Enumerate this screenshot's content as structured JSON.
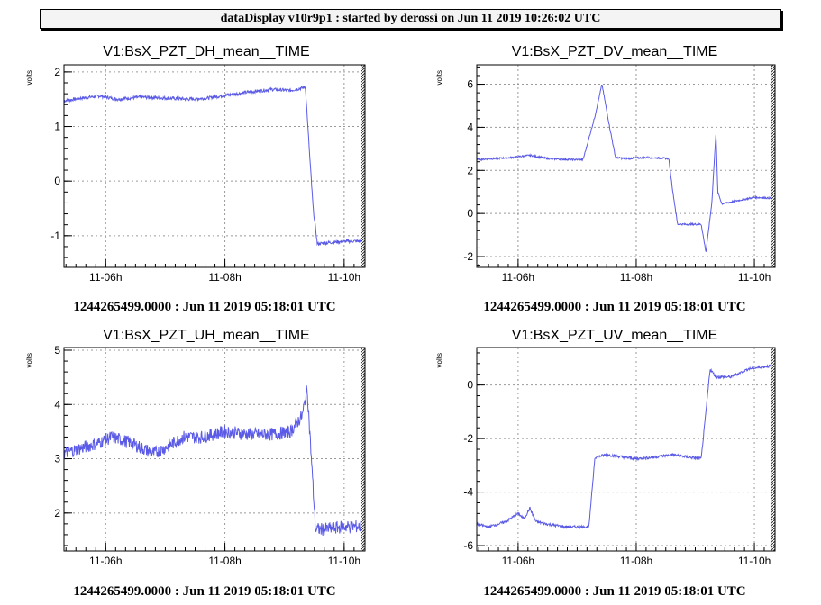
{
  "header": {
    "title": "dataDisplay v10r9p1 : started by derossi on Jun 11 2019 10:26:02 UTC"
  },
  "colors": {
    "series": "#5a5ae6",
    "grid": "#999999",
    "frame": "#000000"
  },
  "chart_data": [
    {
      "type": "line",
      "title": "V1:BsX_PZT_DH_mean__TIME",
      "ylabel": "volts",
      "footer": "1244265499.0000 : Jun 11 2019 05:18:01 UTC",
      "x_tick_labels": [
        "11-06h",
        "11-08h",
        "11-10h"
      ],
      "x_tick_hours": [
        6,
        8,
        10
      ],
      "xlim": [
        5.3,
        10.35
      ],
      "ylim": [
        -1.58,
        2.13
      ],
      "y_ticks": [
        -1,
        0,
        1,
        2
      ],
      "y_tick_labels": [
        "-1",
        "0",
        "1",
        "2"
      ],
      "noise": 0.03,
      "series": [
        {
          "x": [
            5.3,
            5.6,
            5.9,
            6.2,
            6.6,
            7.0,
            7.4,
            7.7,
            8.0,
            8.4,
            8.8,
            9.1,
            9.35,
            9.42,
            9.48,
            9.55,
            9.8,
            10.1,
            10.35
          ],
          "y": [
            1.47,
            1.52,
            1.56,
            1.5,
            1.54,
            1.52,
            1.5,
            1.52,
            1.57,
            1.63,
            1.68,
            1.66,
            1.72,
            0.5,
            -0.5,
            -1.15,
            -1.12,
            -1.1,
            -1.1
          ]
        }
      ]
    },
    {
      "type": "line",
      "title": "V1:BsX_PZT_DV_mean__TIME",
      "ylabel": "volts",
      "footer": "1244265499.0000 : Jun 11 2019 05:18:01 UTC",
      "x_tick_labels": [
        "11-06h",
        "11-08h",
        "11-10h"
      ],
      "x_tick_hours": [
        6,
        8,
        10
      ],
      "xlim": [
        5.3,
        10.35
      ],
      "ylim": [
        -2.5,
        6.9
      ],
      "y_ticks": [
        -2,
        0,
        2,
        4,
        6
      ],
      "y_tick_labels": [
        "-2",
        "0",
        "2",
        "4",
        "6"
      ],
      "noise": 0.04,
      "series": [
        {
          "x": [
            5.3,
            5.6,
            5.9,
            6.2,
            6.5,
            6.9,
            7.1,
            7.3,
            7.42,
            7.55,
            7.65,
            7.8,
            8.2,
            8.55,
            8.62,
            8.7,
            9.0,
            9.1,
            9.18,
            9.28,
            9.35,
            9.38,
            9.45,
            10.0,
            10.35
          ],
          "y": [
            2.5,
            2.55,
            2.6,
            2.7,
            2.55,
            2.5,
            2.5,
            4.5,
            6.0,
            4.0,
            2.6,
            2.55,
            2.6,
            2.55,
            1.0,
            -0.5,
            -0.5,
            -0.5,
            -1.8,
            0.5,
            3.8,
            1.0,
            0.45,
            0.75,
            0.7
          ]
        }
      ]
    },
    {
      "type": "line",
      "title": "V1:BsX_PZT_UH_mean__TIME",
      "ylabel": "volts",
      "footer": "1244265499.0000 : Jun 11 2019 05:18:01 UTC",
      "x_tick_labels": [
        "11-06h",
        "11-08h",
        "11-10h"
      ],
      "x_tick_hours": [
        6,
        8,
        10
      ],
      "xlim": [
        5.3,
        10.35
      ],
      "ylim": [
        1.3,
        5.05
      ],
      "y_ticks": [
        2,
        3,
        4,
        5
      ],
      "y_tick_labels": [
        "2",
        "3",
        "4",
        "5"
      ],
      "noise": 0.12,
      "series": [
        {
          "x": [
            5.3,
            5.6,
            5.9,
            6.1,
            6.4,
            6.8,
            7.0,
            7.3,
            7.6,
            8.0,
            8.4,
            8.8,
            9.1,
            9.3,
            9.38,
            9.45,
            9.52,
            9.7,
            10.0,
            10.35
          ],
          "y": [
            3.1,
            3.2,
            3.3,
            3.4,
            3.3,
            3.1,
            3.2,
            3.4,
            3.4,
            3.5,
            3.45,
            3.45,
            3.5,
            3.8,
            4.3,
            3.0,
            1.7,
            1.7,
            1.75,
            1.75
          ]
        }
      ]
    },
    {
      "type": "line",
      "title": "V1:BsX_PZT_UV_mean__TIME",
      "ylabel": "volts",
      "footer": "1244265499.0000 : Jun 11 2019 05:18:01 UTC",
      "x_tick_labels": [
        "11-06h",
        "11-08h",
        "11-10h"
      ],
      "x_tick_hours": [
        6,
        8,
        10
      ],
      "xlim": [
        5.3,
        10.35
      ],
      "ylim": [
        -6.2,
        1.4
      ],
      "y_ticks": [
        -6,
        -4,
        -2,
        0
      ],
      "y_tick_labels": [
        "-6",
        "-4",
        "-2",
        "0"
      ],
      "noise": 0.05,
      "series": [
        {
          "x": [
            5.3,
            5.5,
            5.8,
            6.0,
            6.1,
            6.2,
            6.3,
            6.5,
            6.8,
            7.2,
            7.3,
            7.5,
            7.8,
            8.0,
            8.3,
            8.6,
            8.9,
            9.1,
            9.18,
            9.25,
            9.35,
            9.6,
            9.9,
            10.2,
            10.35
          ],
          "y": [
            -5.2,
            -5.3,
            -5.1,
            -4.8,
            -5.0,
            -4.6,
            -5.1,
            -5.2,
            -5.3,
            -5.3,
            -2.7,
            -2.6,
            -2.7,
            -2.75,
            -2.7,
            -2.6,
            -2.7,
            -2.75,
            -1.0,
            0.6,
            0.3,
            0.3,
            0.6,
            0.7,
            0.7
          ]
        }
      ]
    }
  ]
}
